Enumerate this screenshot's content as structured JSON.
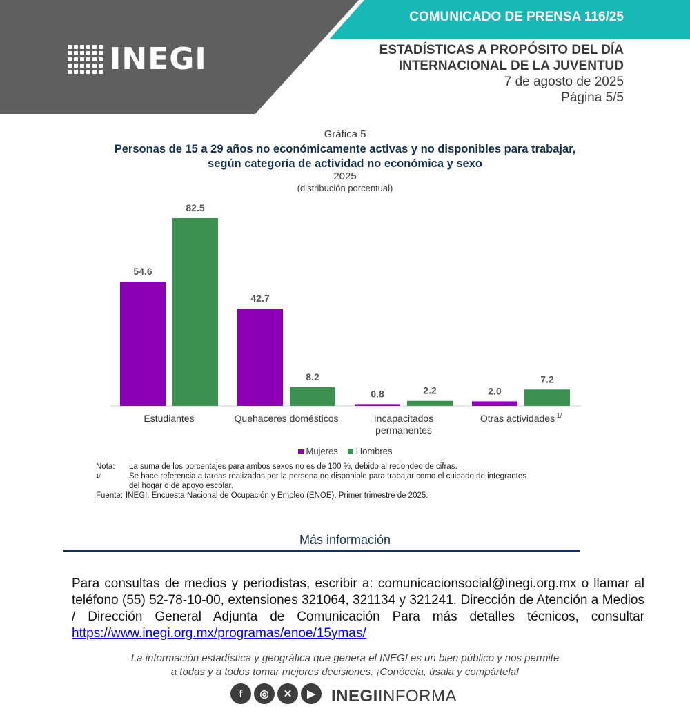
{
  "header": {
    "logo_text": "INEGI",
    "press_release": "COMUNICADO DE PRENSA 116/25",
    "title_line1": "ESTADÍSTICAS A PROPÓSITO DEL DÍA",
    "title_line2": "INTERNACIONAL DE LA JUVENTUD",
    "date": "7 de agosto de 2025",
    "page": "Página 5/5",
    "colors": {
      "gray": "#5f5f5f",
      "teal": "#17b8b5"
    }
  },
  "chart_head": {
    "label": "Gráfica 5",
    "title_line1": "Personas de 15 a 29 años no económicamente activas y no disponibles para trabajar,",
    "title_line2": "según categoría de actividad no económica y sexo",
    "year": "2025",
    "unit": "(distribución porcentual)"
  },
  "chart_data": {
    "type": "bar",
    "categories": [
      "Estudiantes",
      "Quehaceres domésticos",
      "Incapacitados permanentes",
      "Otras actividades"
    ],
    "category_labels": [
      [
        "Estudiantes"
      ],
      [
        "Quehaceres domésticos"
      ],
      [
        "Incapacitados",
        "permanentes"
      ],
      [
        "Otras actividades"
      ]
    ],
    "category_sup": [
      "",
      "",
      "",
      "1/"
    ],
    "series": [
      {
        "name": "Mujeres",
        "values": [
          54.6,
          42.7,
          0.8,
          2.0
        ],
        "labels": [
          "54.6",
          "42.7",
          "0.8",
          "2.0"
        ],
        "color": "#8b00b6"
      },
      {
        "name": "Hombres",
        "values": [
          82.5,
          8.2,
          2.2,
          7.2
        ],
        "labels": [
          "82.5",
          "8.2",
          "2.2",
          "7.2"
        ],
        "color": "#3c9150"
      }
    ],
    "ylim": [
      0,
      82.5
    ],
    "grid": false,
    "legend_position": "bottom"
  },
  "notes": {
    "nota_label": "Nota:",
    "nota_text": "La suma de los porcentajes para ambos sexos no es de 100 %, debido al redondeo de cifras.",
    "ref_label": "1/",
    "ref_text_line1": "Se hace referencia a tareas realizadas por la persona no disponible para trabajar como el cuidado de integrantes",
    "ref_text_line2": "del hogar o de apoyo escolar.",
    "fuente_label": "Fuente:",
    "fuente_text": "INEGI. Encuesta Nacional de Ocupación y Empleo (ENOE), Primer trimestre de 2025."
  },
  "mas_info": "Más información",
  "contact": {
    "text": "Para consultas de medios y periodistas, escribir a: comunicacionsocial@inegi.org.mx o llamar al teléfono (55) 52-78-10-00, extensiones 321064, 321134 y 321241. Dirección de Atención a Medios / Dirección General Adjunta de Comunicación Para más detalles técnicos, consultar",
    "link": "https://www.inegi.org.mx/programas/enoe/15ymas/"
  },
  "tagline": {
    "line1": "La información estadística y geográfica que genera el INEGI es un bien público y nos permite",
    "line2": "a todas y a todos tomar mejores decisiones. ¡Conócela, úsala y compártela!"
  },
  "social": {
    "icons": [
      "facebook-icon",
      "instagram-icon",
      "x-icon",
      "youtube-icon"
    ],
    "glyphs": [
      "f",
      "◎",
      "✕",
      "▶"
    ]
  },
  "brand": {
    "bold": "INEGI",
    "light": "INFORMA"
  }
}
